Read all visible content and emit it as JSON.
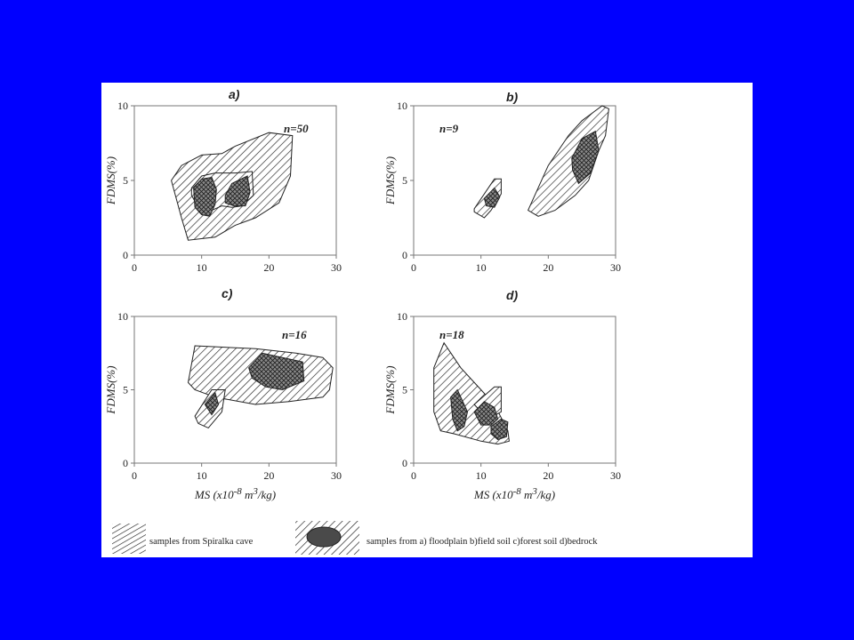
{
  "colors": {
    "background": "#0000ff",
    "figure": "#ffffff",
    "ink": "#222222",
    "source_fill": "#555555"
  },
  "chart_data": [
    {
      "type": "area",
      "panel": "a)",
      "n_label": "n=50",
      "xlim": [
        0,
        30
      ],
      "ylim": [
        0,
        10
      ],
      "xticks": [
        0,
        10,
        20,
        30
      ],
      "yticks": [
        0,
        5,
        10
      ],
      "xlabel": "",
      "ylabel": "FDMS(%)",
      "regions": [
        {
          "role": "cave",
          "pattern": "hatch",
          "points": [
            [
              5.5,
              5
            ],
            [
              7,
              6
            ],
            [
              10,
              6.7
            ],
            [
              13,
              6.8
            ],
            [
              15,
              7.3
            ],
            [
              20,
              8.2
            ],
            [
              23.5,
              8
            ],
            [
              23.2,
              5.3
            ],
            [
              21.5,
              3.5
            ],
            [
              18,
              2.5
            ],
            [
              15,
              2
            ],
            [
              12,
              1.2
            ],
            [
              8,
              1
            ],
            [
              7,
              2.5
            ]
          ]
        },
        {
          "role": "cave",
          "pattern": "hatch",
          "points": [
            [
              8.5,
              4.5
            ],
            [
              10,
              5.3
            ],
            [
              12,
              5.5
            ],
            [
              14,
              5.5
            ],
            [
              15,
              5.5
            ],
            [
              17.5,
              5.6
            ],
            [
              17.7,
              4
            ],
            [
              16,
              3.3
            ],
            [
              14.5,
              3.2
            ],
            [
              13,
              3.3
            ],
            [
              11.5,
              3
            ],
            [
              9.5,
              3.2
            ],
            [
              8.5,
              4
            ]
          ]
        },
        {
          "role": "source",
          "pattern": "crosshatch",
          "points": [
            [
              8.8,
              4.5
            ],
            [
              10,
              5.1
            ],
            [
              11.5,
              5.2
            ],
            [
              12.2,
              4.4
            ],
            [
              12,
              3.4
            ],
            [
              11.2,
              2.6
            ],
            [
              10,
              2.7
            ],
            [
              9,
              3.2
            ]
          ]
        },
        {
          "role": "source",
          "pattern": "crosshatch",
          "points": [
            [
              13.5,
              4
            ],
            [
              14.5,
              4.8
            ],
            [
              16.8,
              5.3
            ],
            [
              17.2,
              4.2
            ],
            [
              16.5,
              3.3
            ],
            [
              14.8,
              3.3
            ],
            [
              13.5,
              3.5
            ]
          ]
        }
      ]
    },
    {
      "type": "area",
      "panel": "b)",
      "n_label": "n=9",
      "xlim": [
        0,
        30
      ],
      "ylim": [
        0,
        10
      ],
      "xticks": [
        0,
        10,
        20,
        30
      ],
      "yticks": [
        0,
        5,
        10
      ],
      "xlabel": "",
      "ylabel": "FDMS(%)",
      "regions": [
        {
          "role": "cave",
          "pattern": "hatch",
          "points": [
            [
              9,
              3.1
            ],
            [
              12,
              5.1
            ],
            [
              13,
              5.1
            ],
            [
              13,
              4.1
            ],
            [
              11.5,
              3
            ],
            [
              10.5,
              2.5
            ],
            [
              9,
              2.9
            ]
          ]
        },
        {
          "role": "cave",
          "pattern": "hatch",
          "points": [
            [
              17,
              3
            ],
            [
              20,
              6
            ],
            [
              23,
              8
            ],
            [
              25,
              9
            ],
            [
              26.5,
              9.5
            ],
            [
              28,
              10
            ],
            [
              29,
              9.8
            ],
            [
              28.5,
              8
            ],
            [
              27.5,
              7
            ],
            [
              26,
              5
            ],
            [
              24,
              4
            ],
            [
              21,
              3
            ],
            [
              18.5,
              2.6
            ]
          ]
        },
        {
          "role": "source",
          "pattern": "crosshatch",
          "points": [
            [
              10.5,
              3.8
            ],
            [
              12,
              4.5
            ],
            [
              12.8,
              3.9
            ],
            [
              12,
              3.2
            ],
            [
              10.8,
              3.3
            ]
          ]
        },
        {
          "role": "source",
          "pattern": "crosshatch",
          "points": [
            [
              23.5,
              6.5
            ],
            [
              25,
              7.8
            ],
            [
              27,
              8.3
            ],
            [
              27.5,
              7
            ],
            [
              26.3,
              5.5
            ],
            [
              24.5,
              4.8
            ],
            [
              23.6,
              5.7
            ]
          ]
        }
      ]
    },
    {
      "type": "area",
      "panel": "c)",
      "n_label": "n=16",
      "xlim": [
        0,
        30
      ],
      "ylim": [
        0,
        10
      ],
      "xticks": [
        0,
        10,
        20,
        30
      ],
      "yticks": [
        0,
        5,
        10
      ],
      "xlabel": "MS (x10-8 m3/kg)",
      "ylabel": "FDMS(%)",
      "regions": [
        {
          "role": "cave",
          "pattern": "hatch",
          "points": [
            [
              8,
              5.5
            ],
            [
              9,
              8
            ],
            [
              18,
              7.8
            ],
            [
              24,
              7.5
            ],
            [
              28,
              7.2
            ],
            [
              29.5,
              6.5
            ],
            [
              29,
              5
            ],
            [
              28,
              4.5
            ],
            [
              23,
              4.2
            ],
            [
              18,
              4
            ],
            [
              12,
              4.5
            ],
            [
              9,
              5
            ]
          ]
        },
        {
          "role": "cave",
          "pattern": "hatch",
          "points": [
            [
              9,
              3.2
            ],
            [
              11.5,
              5
            ],
            [
              13.5,
              5
            ],
            [
              13,
              3.5
            ],
            [
              11,
              2.4
            ],
            [
              9.5,
              2.7
            ]
          ]
        },
        {
          "role": "source",
          "pattern": "crosshatch",
          "points": [
            [
              17,
              6.5
            ],
            [
              19,
              7.5
            ],
            [
              22,
              7.2
            ],
            [
              25,
              6.9
            ],
            [
              25.2,
              5.6
            ],
            [
              22,
              5
            ],
            [
              19.5,
              5.2
            ],
            [
              17.5,
              5.8
            ]
          ]
        },
        {
          "role": "source",
          "pattern": "crosshatch",
          "points": [
            [
              10.5,
              4
            ],
            [
              12,
              4.8
            ],
            [
              12.5,
              4
            ],
            [
              11.5,
              3.3
            ]
          ]
        }
      ]
    },
    {
      "type": "area",
      "panel": "d)",
      "n_label": "n=18",
      "xlim": [
        0,
        30
      ],
      "ylim": [
        0,
        10
      ],
      "xticks": [
        0,
        10,
        20,
        30
      ],
      "yticks": [
        0,
        5,
        10
      ],
      "xlabel": "MS (x10-8 m3/kg)",
      "ylabel": "FDMS(%)",
      "regions": [
        {
          "role": "cave",
          "pattern": "hatch",
          "points": [
            [
              3,
              6.5
            ],
            [
              4.5,
              8.2
            ],
            [
              7,
              6.5
            ],
            [
              10,
              5
            ],
            [
              12,
              4
            ],
            [
              14,
              2.2
            ],
            [
              14.2,
              1.5
            ],
            [
              12.5,
              1.3
            ],
            [
              10,
              1.5
            ],
            [
              6,
              2
            ],
            [
              4,
              2.2
            ],
            [
              3,
              3.5
            ]
          ]
        },
        {
          "role": "cave",
          "pattern": "hatch",
          "points": [
            [
              9,
              4
            ],
            [
              12,
              5.2
            ],
            [
              13,
              5.2
            ],
            [
              13,
              3.5
            ],
            [
              11,
              3
            ]
          ]
        },
        {
          "role": "source",
          "pattern": "crosshatch",
          "points": [
            [
              5.5,
              4.5
            ],
            [
              6.5,
              5
            ],
            [
              8,
              3.5
            ],
            [
              7.5,
              2.5
            ],
            [
              6.5,
              2.2
            ],
            [
              5.8,
              3
            ]
          ]
        },
        {
          "role": "source",
          "pattern": "crosshatch",
          "points": [
            [
              9,
              3.5
            ],
            [
              10.5,
              4.2
            ],
            [
              12,
              3.8
            ],
            [
              12.5,
              3
            ],
            [
              11.5,
              2.6
            ],
            [
              10,
              2.6
            ]
          ]
        },
        {
          "role": "source",
          "pattern": "crosshatch",
          "points": [
            [
              11.5,
              2.5
            ],
            [
              13,
              3
            ],
            [
              14,
              2.8
            ],
            [
              13.8,
              1.8
            ],
            [
              12.5,
              1.6
            ],
            [
              11.5,
              2
            ]
          ]
        }
      ]
    }
  ],
  "legend": {
    "cave_label": "samples from Spiralka cave",
    "source_label": "samples from a) floodplain b)field soil c)forest soil d)bedrock"
  }
}
